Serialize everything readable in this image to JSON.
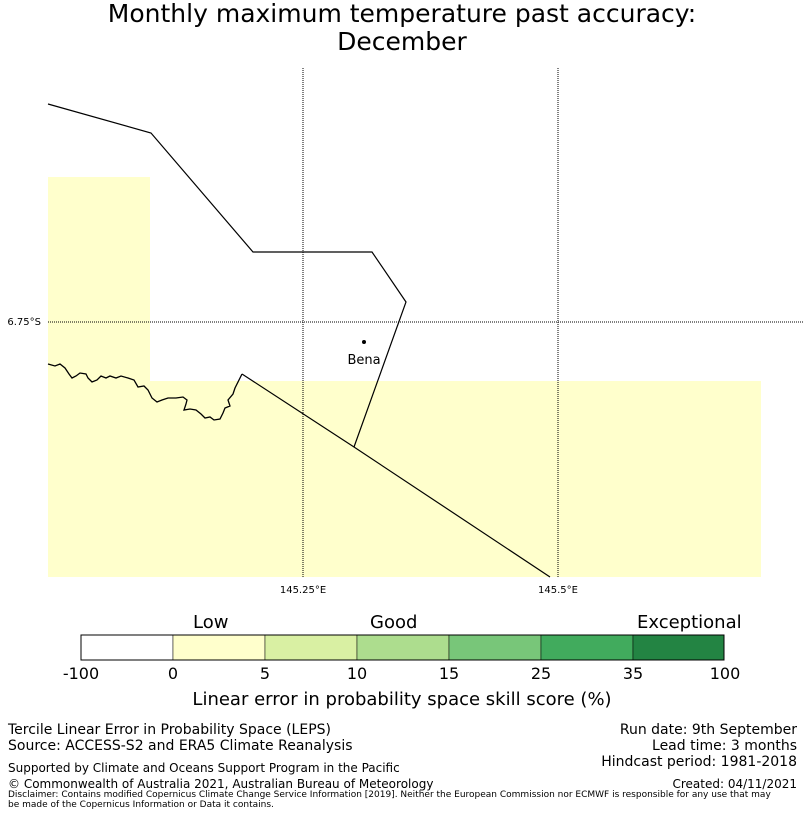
{
  "title": {
    "line1": "Monthly maximum temperature past accuracy:",
    "line2": "December"
  },
  "map": {
    "place_label": "Bena",
    "lat_labels": [
      "6.75°S"
    ],
    "lon_labels": [
      "145.25°E",
      "145.5°E"
    ],
    "fill_color": "#ffffcc"
  },
  "colorbar": {
    "category_labels": [
      "Low",
      "Good",
      "Exceptional"
    ],
    "ticks": [
      "-100",
      "0",
      "5",
      "10",
      "15",
      "25",
      "35",
      "100"
    ],
    "colors": [
      "#ffffff",
      "#ffffcc",
      "#d9f0a3",
      "#addd8e",
      "#78c679",
      "#41ab5d",
      "#238443"
    ],
    "title": "Linear error in probability space skill score (%)"
  },
  "footer": {
    "left": [
      "Tercile Linear Error in Probability Space (LEPS)",
      "Source: ACCESS-S2 and ERA5 Climate Reanalysis"
    ],
    "right": [
      "Run date: 9th September",
      "Lead time: 3 months",
      "Hindcast period: 1981-2018"
    ],
    "support": "Supported by Climate and Oceans Support Program in the Pacific",
    "copyright": "© Commonwealth of Australia 2021, Australian Bureau of Meteorology",
    "created": "Created: 04/11/2021",
    "disclaimer_line1": "Disclaimer: Contains modified Copernicus Climate Change Service Information [2019]. Neither the European Commission nor ECMWF is responsible for any use that may",
    "disclaimer_line2": "be made of the Copernicus Information or Data it contains."
  }
}
